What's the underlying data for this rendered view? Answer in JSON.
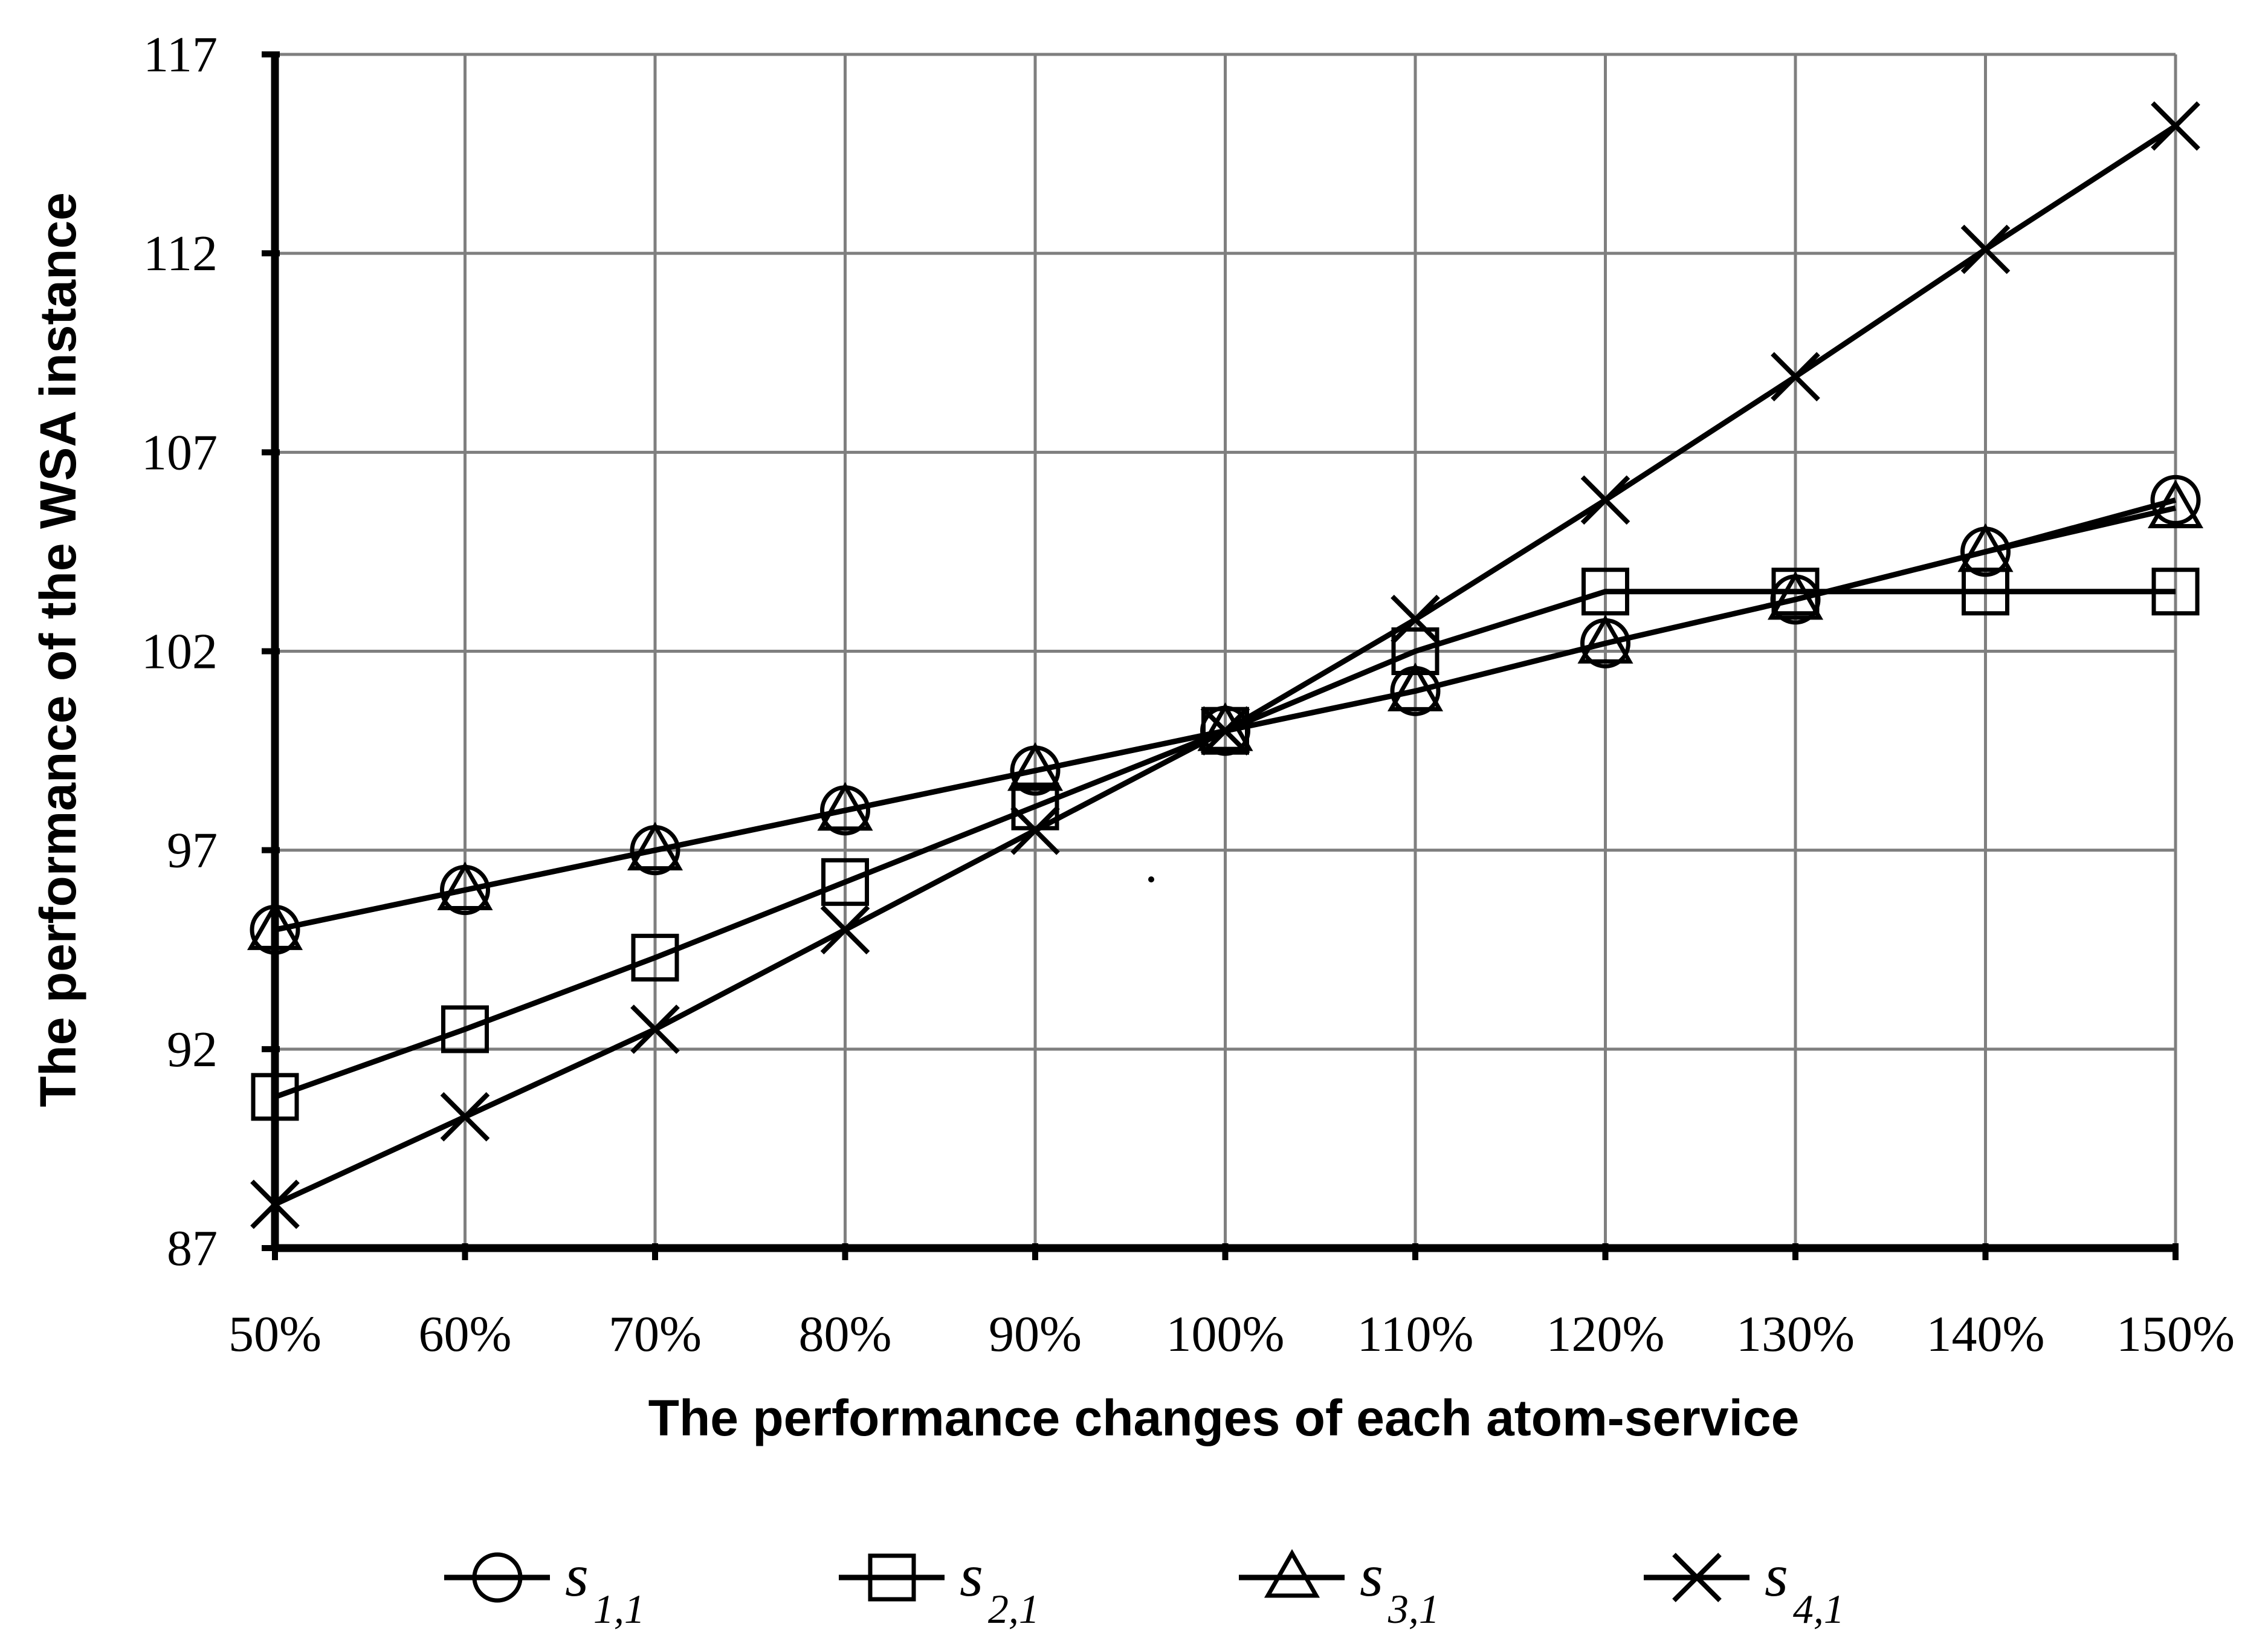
{
  "chart_data": {
    "type": "line",
    "xlabel": "The performance changes of each atom-service",
    "ylabel": "The performance of the WSA instance",
    "x": [
      "50%",
      "60%",
      "70%",
      "80%",
      "90%",
      "100%",
      "110%",
      "120%",
      "130%",
      "140%",
      "150%"
    ],
    "ylim": [
      87,
      117
    ],
    "yticks": [
      "87",
      "92",
      "97",
      "102",
      "107",
      "112",
      "117"
    ],
    "grid": true,
    "legend_position": "bottom",
    "series": [
      {
        "name": "s",
        "sub": "1,1",
        "marker": "circle",
        "values": [
          95,
          96,
          97,
          98,
          99,
          100,
          101,
          102.2,
          103.3,
          104.5,
          105.8
        ]
      },
      {
        "name": "s",
        "sub": "2,1",
        "marker": "square",
        "values": [
          90.8,
          92.5,
          94.3,
          96.2,
          98.1,
          100,
          102,
          103.5,
          103.5,
          103.5,
          103.5
        ]
      },
      {
        "name": "s",
        "sub": "3,1",
        "marker": "triangle",
        "values": [
          95,
          96,
          97,
          98,
          99,
          100,
          101,
          102.2,
          103.3,
          104.5,
          105.6
        ]
      },
      {
        "name": "s",
        "sub": "4,1",
        "marker": "x",
        "values": [
          88.1,
          90.3,
          92.5,
          95,
          97.5,
          100,
          102.8,
          105.8,
          108.9,
          112.1,
          115.2
        ]
      }
    ]
  }
}
